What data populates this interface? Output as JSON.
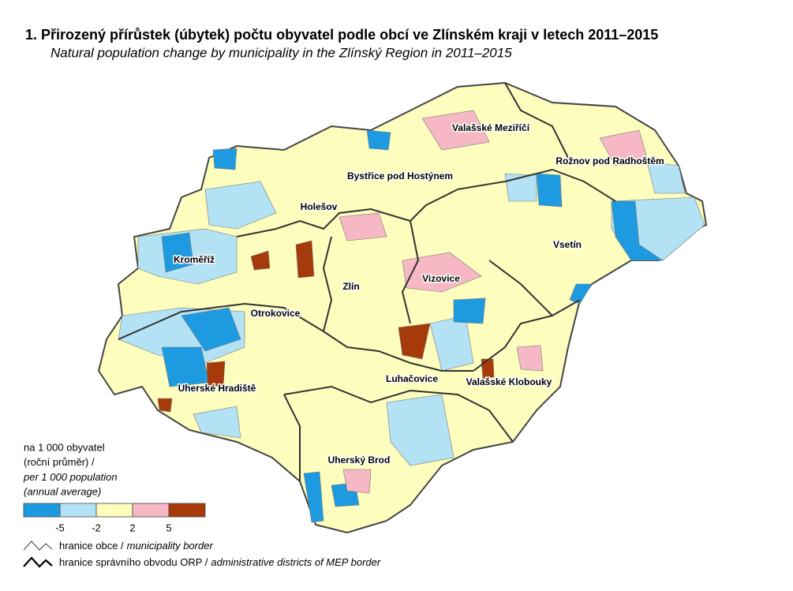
{
  "header": {
    "title": "1. Přirozený přírůstek (úbytek) počtu obyvatel podle obcí ve Zlínském kraji v letech 2011–2015",
    "subtitle": "Natural population change by municipality in the Zlínský Region in 2011–2015"
  },
  "map": {
    "labels": [
      "Valašské Meziříčí",
      "Rožnov pod Radhoštěm",
      "Bystřice pod Hostýnem",
      "Holešov",
      "Kroměříž",
      "Vsetín",
      "Vizovice",
      "Zlín",
      "Otrokovice",
      "Luhačovice",
      "Valašské Klobouky",
      "Uherské Hradiště",
      "Uherský Brod"
    ]
  },
  "legend": {
    "title_lines": [
      "na 1 000 obyvatel",
      "(roční průměr) /",
      "per 1 000 population",
      "(annual average)"
    ],
    "colors": [
      "#1e9be0",
      "#b4e2f5",
      "#fdfdbe",
      "#f6b8c4",
      "#a63a0a"
    ],
    "breaks": [
      -5,
      -2,
      2,
      5
    ],
    "borders": [
      {
        "label": "hranice obce /",
        "label_en": "municipality border"
      },
      {
        "label": "hranice správního obvodu ORP /",
        "label_en": "administrative districts of MEP border"
      }
    ]
  }
}
